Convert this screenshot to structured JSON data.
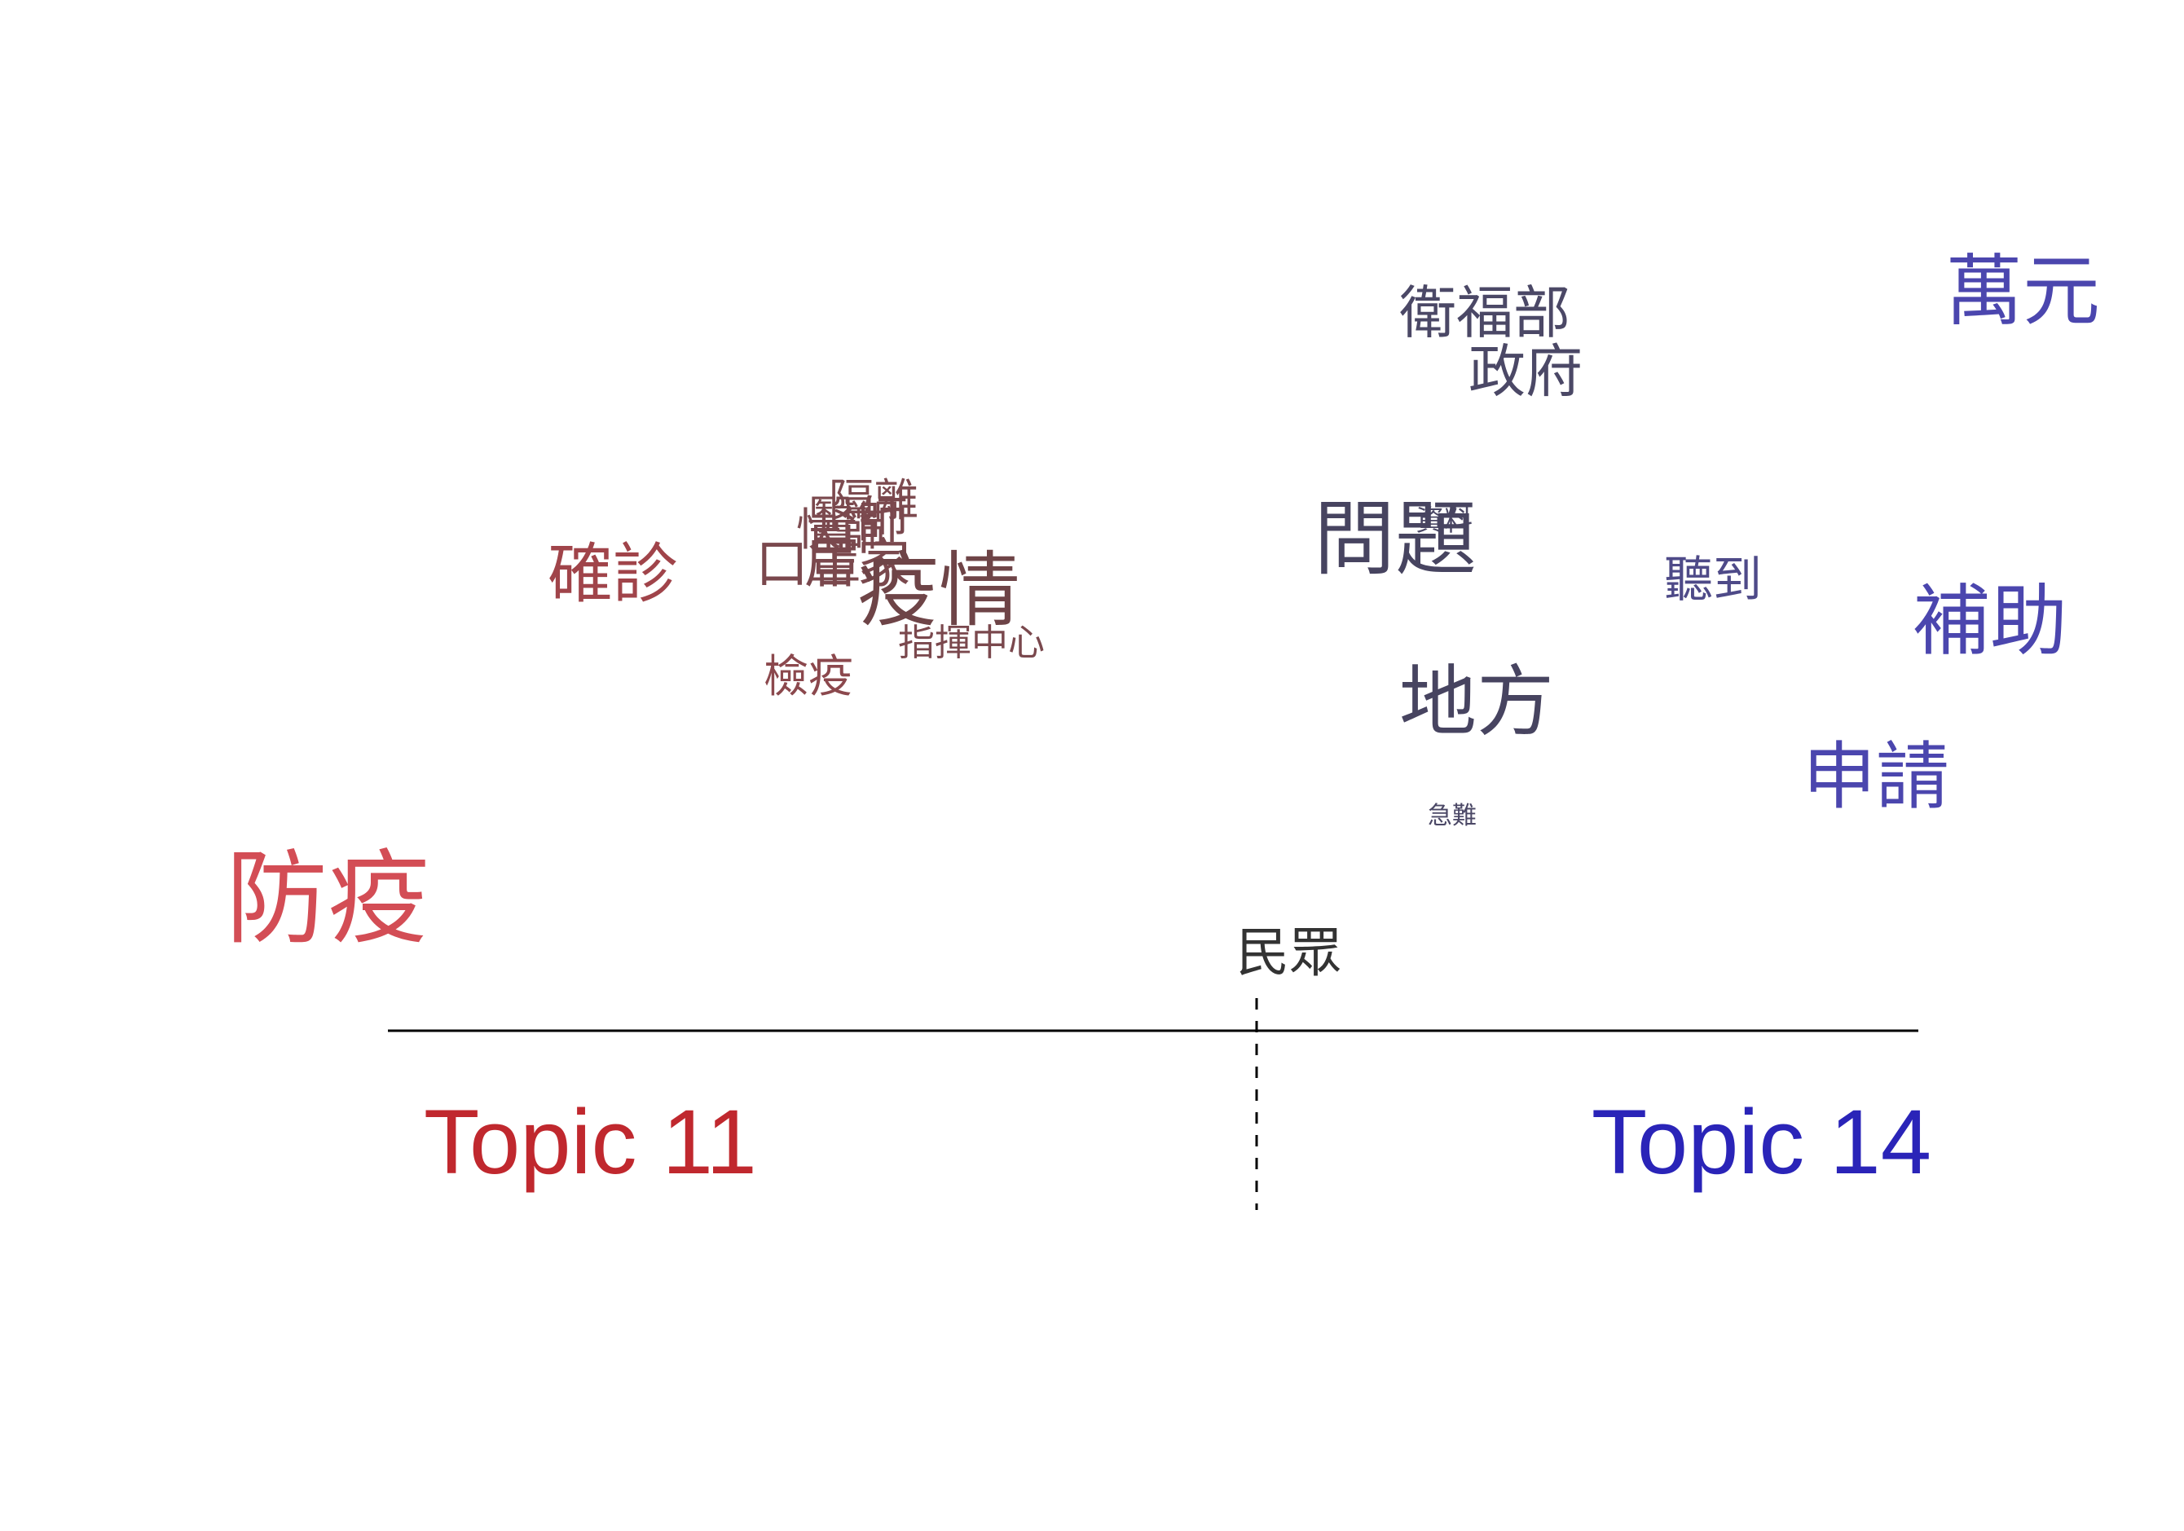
{
  "chart_data": {
    "type": "scatter",
    "title": "",
    "xlabel": "",
    "ylabel": "",
    "xlim": [
      -1,
      1
    ],
    "ylim": [
      0,
      1
    ],
    "grid": false,
    "left_topic": {
      "label": "Topic 11",
      "color": "#c0282e"
    },
    "right_topic": {
      "label": "Topic 14",
      "color": "#2a24b8"
    },
    "words": [
      {
        "text": "萬元",
        "x": 0.94,
        "y": 0.9,
        "weight": 0.95,
        "color": "#4b46ae"
      },
      {
        "text": "衛福部",
        "x": 0.28,
        "y": 0.88,
        "weight": 0.7,
        "color": "#4b4866"
      },
      {
        "text": "政府",
        "x": 0.33,
        "y": 0.8,
        "weight": 0.7,
        "color": "#4b4866"
      },
      {
        "text": "隔離",
        "x": -0.47,
        "y": 0.63,
        "weight": 0.55,
        "color": "#7c4a4f"
      },
      {
        "text": "醫師",
        "x": -0.49,
        "y": 0.6,
        "weight": 0.62,
        "color": "#7a484d"
      },
      {
        "text": "資料",
        "x": 0.23,
        "y": 0.61,
        "weight": 0.35,
        "color": "#4b4866"
      },
      {
        "text": "快篩",
        "x": -0.51,
        "y": 0.59,
        "weight": 0.55,
        "color": "#7c4a4f"
      },
      {
        "text": "問題",
        "x": 0.17,
        "y": 0.56,
        "weight": 1.0,
        "color": "#474460"
      },
      {
        "text": "確診",
        "x": -0.79,
        "y": 0.52,
        "weight": 0.8,
        "color": "#a0444a"
      },
      {
        "text": "居家",
        "x": -0.49,
        "y": 0.54,
        "weight": 0.65,
        "color": "#7a484d"
      },
      {
        "text": "口罩",
        "x": -0.55,
        "y": 0.54,
        "weight": 0.65,
        "color": "#7a484d"
      },
      {
        "text": "聽到",
        "x": 0.56,
        "y": 0.52,
        "weight": 0.6,
        "color": "#4e4a88"
      },
      {
        "text": "疫情",
        "x": -0.39,
        "y": 0.49,
        "weight": 1.0,
        "color": "#6e4447"
      },
      {
        "text": "指揮中心",
        "x": -0.35,
        "y": 0.44,
        "weight": 0.45,
        "color": "#7a484d"
      },
      {
        "text": "補助",
        "x": 0.9,
        "y": 0.45,
        "weight": 0.95,
        "color": "#4b46ae"
      },
      {
        "text": "檢疫",
        "x": -0.55,
        "y": 0.39,
        "weight": 0.55,
        "color": "#8b484d"
      },
      {
        "text": "地方",
        "x": 0.27,
        "y": 0.34,
        "weight": 0.95,
        "color": "#474460"
      },
      {
        "text": "申請",
        "x": 0.76,
        "y": 0.24,
        "weight": 0.9,
        "color": "#4b46ae"
      },
      {
        "text": "急難",
        "x": 0.24,
        "y": 0.21,
        "weight": 0.3,
        "color": "#4b4866"
      },
      {
        "text": "防疫",
        "x": -1.14,
        "y": 0.06,
        "weight": 1.25,
        "color": "#d34d55"
      },
      {
        "text": "民眾",
        "x": 0.04,
        "y": 0.01,
        "weight": 0.65,
        "color": "#333333"
      }
    ]
  }
}
